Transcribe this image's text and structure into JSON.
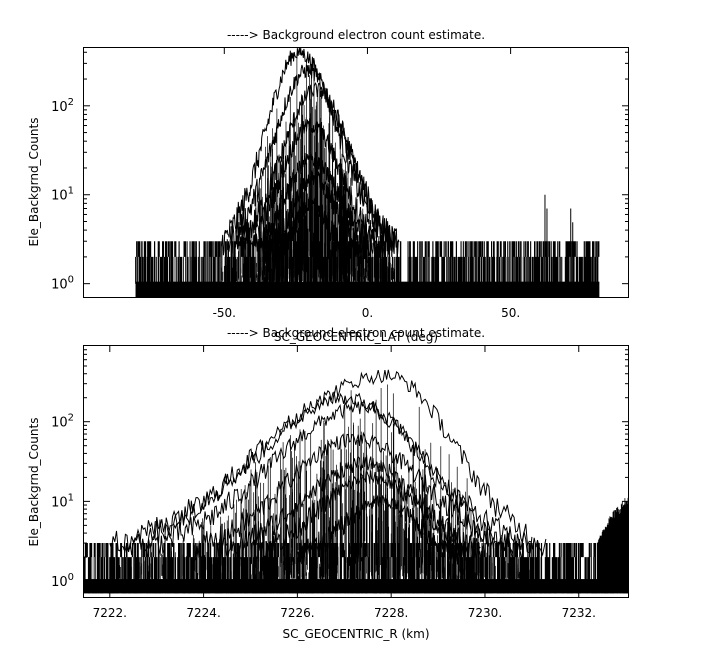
{
  "chart_data": [
    {
      "type": "line",
      "title": "-----> Background electron count estimate.",
      "xlabel": "SC_GEOCENTRIC_LAT (deg)",
      "ylabel": "Ele_Backgrnd_Counts",
      "xlim": [
        -99,
        91
      ],
      "ylim_log10": [
        -0.15,
        2.65
      ],
      "yscale": "log",
      "grid": false,
      "x_ticks": [
        {
          "value": -50,
          "label": "-50."
        },
        {
          "value": 0,
          "label": "0."
        },
        {
          "value": 50,
          "label": "50."
        }
      ],
      "y_ticks": [
        {
          "value": 1,
          "base": "10",
          "exp": "0"
        },
        {
          "value": 10,
          "base": "10",
          "exp": "1"
        },
        {
          "value": 100,
          "base": "10",
          "exp": "2"
        }
      ],
      "background_noise": {
        "x_range": [
          -81,
          81
        ],
        "levels": [
          0.7,
          1,
          2,
          3
        ],
        "gap_x_range": [
          12,
          14
        ]
      },
      "series": [
        {
          "x_start": -51,
          "x_end": 8,
          "x_peak": -24,
          "peak": 400
        },
        {
          "x_start": -49,
          "x_end": 10,
          "x_peak": -21,
          "peak": 250
        },
        {
          "x_start": -46,
          "x_end": 11,
          "x_peak": -18,
          "peak": 150
        },
        {
          "x_start": -44,
          "x_end": 6,
          "x_peak": -20,
          "peak": 60
        },
        {
          "x_start": -40,
          "x_end": 4,
          "x_peak": -20,
          "peak": 25
        },
        {
          "x_start": -36,
          "x_end": 0,
          "x_peak": -19,
          "peak": 15
        },
        {
          "x_start": -32,
          "x_end": -6,
          "x_peak": -20,
          "peak": 8
        }
      ],
      "outliers": [
        {
          "x": 62,
          "y": 10
        },
        {
          "x": 71,
          "y": 7
        }
      ]
    },
    {
      "type": "line",
      "title": "-----> Background electron count estimate.",
      "xlabel": "SC_GEOCENTRIC_R (km)",
      "ylabel": "Ele_Backgrnd_Counts",
      "xlim": [
        7221.45,
        7233.05
      ],
      "ylim_log10": [
        -0.2,
        2.95
      ],
      "yscale": "log",
      "grid": false,
      "x_ticks": [
        {
          "value": 7222,
          "label": "7222."
        },
        {
          "value": 7224,
          "label": "7224."
        },
        {
          "value": 7226,
          "label": "7226."
        },
        {
          "value": 7228,
          "label": "7228."
        },
        {
          "value": 7230,
          "label": "7230."
        },
        {
          "value": 7232,
          "label": "7232."
        }
      ],
      "y_ticks": [
        {
          "value": 1,
          "base": "10",
          "exp": "0"
        },
        {
          "value": 10,
          "base": "10",
          "exp": "1"
        },
        {
          "value": 100,
          "base": "10",
          "exp": "2"
        }
      ],
      "background_noise": {
        "x_range": [
          7221.45,
          7233.05
        ],
        "levels": [
          0.7,
          1,
          2,
          3
        ]
      },
      "series": [
        {
          "x_start": 7222.0,
          "x_end": 7231.3,
          "x_peak": 7227.9,
          "peak": 380
        },
        {
          "x_start": 7222.3,
          "x_end": 7231.0,
          "x_peak": 7227.0,
          "peak": 200
        },
        {
          "x_start": 7222.8,
          "x_end": 7230.6,
          "x_peak": 7227.4,
          "peak": 150
        },
        {
          "x_start": 7223.8,
          "x_end": 7230.8,
          "x_peak": 7227.2,
          "peak": 60
        },
        {
          "x_start": 7224.3,
          "x_end": 7230.0,
          "x_peak": 7227.5,
          "peak": 30
        },
        {
          "x_start": 7225.0,
          "x_end": 7229.9,
          "x_peak": 7227.6,
          "peak": 20
        },
        {
          "x_start": 7226.0,
          "x_end": 7229.5,
          "x_peak": 7227.8,
          "peak": 10
        }
      ],
      "edge_rise": {
        "x_range": [
          7232.4,
          7233.05
        ],
        "y_range": [
          3,
          12
        ]
      }
    }
  ]
}
